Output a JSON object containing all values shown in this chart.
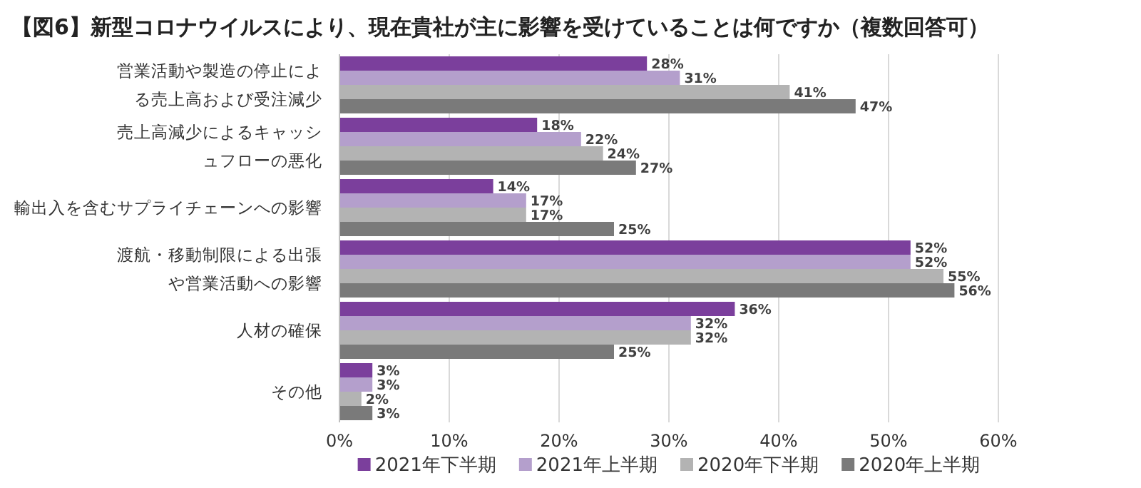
{
  "chart_data": {
    "type": "bar",
    "orientation": "horizontal",
    "title": "【図6】新型コロナウイルスにより、現在貴社が主に影響を受けていることは何ですか（複数回答可）",
    "categories": [
      "営業活動や製造の停止による売上高および受注減少",
      "売上高減少によるキャッシュフローの悪化",
      "輸出入を含むサプライチェーンへの影響",
      "渡航・移動制限による出張や営業活動への影響",
      "人材の確保",
      "その他"
    ],
    "series": [
      {
        "name": "2021年下半期",
        "color": "#7b3f9c",
        "values": [
          28,
          18,
          14,
          52,
          36,
          3
        ],
        "value_labels": [
          "28%",
          "18%",
          "14%",
          "52%",
          "36%",
          "3%"
        ]
      },
      {
        "name": "2021年上半期",
        "color": "#b49fcc",
        "values": [
          31,
          22,
          17,
          52,
          32,
          3
        ],
        "value_labels": [
          "31%",
          "22%",
          "17%",
          "52%",
          "32%",
          "3%"
        ]
      },
      {
        "name": "2020年下半期",
        "color": "#b3b3b3",
        "values": [
          41,
          24,
          17,
          55,
          32,
          2
        ],
        "value_labels": [
          "41%",
          "24%",
          "17%",
          "55%",
          "32%",
          "2%"
        ]
      },
      {
        "name": "2020年上半期",
        "color": "#7a7a7a",
        "values": [
          47,
          27,
          25,
          56,
          25,
          3
        ],
        "value_labels": [
          "47%",
          "27%",
          "25%",
          "56%",
          "25%",
          "3%"
        ]
      }
    ],
    "xlim": [
      0,
      60
    ],
    "xticks": [
      {
        "value": 0,
        "label": "0%"
      },
      {
        "value": 10,
        "label": "10%"
      },
      {
        "value": 20,
        "label": "20%"
      },
      {
        "value": 30,
        "label": "30%"
      },
      {
        "value": 40,
        "label": "40%"
      },
      {
        "value": 50,
        "label": "50%"
      },
      {
        "value": 60,
        "label": "60%"
      }
    ],
    "grid": "x",
    "legend": "bottom"
  }
}
